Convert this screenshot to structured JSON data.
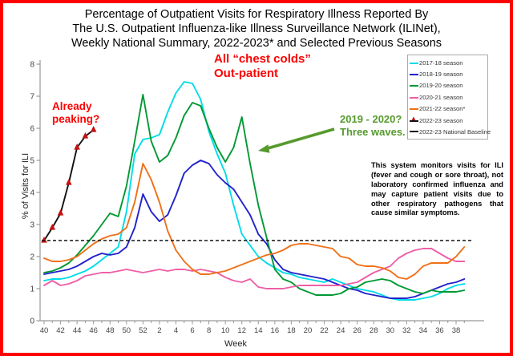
{
  "title": {
    "line1": "Percentage of Outpatient Visits for Respiratory Illness Reported By",
    "line2": "The U.S. Outpatient Influenza-like Illness Surveillance Network (ILINet),",
    "line3": "Weekly National Summary, 2022-2023* and Selected Previous Seasons"
  },
  "annotations": {
    "chest_colds_line1": "All “chest colds”",
    "chest_colds_line2": "Out-patient",
    "already_peaking_line1": "Already",
    "already_peaking_line2": "peaking?",
    "three_waves_line1": "2019 - 2020?",
    "three_waves_line2": "Three waves.",
    "note_text": "This system monitors visits for ILI (fever and cough or sore throat), not laboratory confirmed influenza and may capture patient visits due to other respiratory pathogens that cause similar symptoms."
  },
  "colors": {
    "frame_border": "#fe0000",
    "red_annotation": "#fe0000",
    "green_annotation": "#569a2e",
    "axis": "#999999",
    "tick_text": "#444444"
  },
  "chart_data": {
    "type": "line",
    "title": "Percentage of Outpatient Visits for Respiratory Illness (ILINet), Weekly National Summary, 2022-2023* and Selected Previous Seasons",
    "xlabel": "Week",
    "ylabel": "% of Visits for ILI",
    "ylim": [
      0,
      8
    ],
    "y_ticks": [
      0,
      1,
      2,
      3,
      4,
      5,
      6,
      7,
      8
    ],
    "grid": false,
    "legend_position": "top-right",
    "weeks": [
      40,
      41,
      42,
      43,
      44,
      45,
      46,
      47,
      48,
      49,
      50,
      51,
      52,
      1,
      2,
      3,
      4,
      5,
      6,
      7,
      8,
      9,
      10,
      11,
      12,
      13,
      14,
      15,
      16,
      17,
      18,
      19,
      20,
      21,
      22,
      23,
      24,
      25,
      26,
      27,
      28,
      29,
      30,
      31,
      32,
      33,
      34,
      35,
      36,
      37,
      38,
      39
    ],
    "series": [
      {
        "name": "2017-18 season",
        "color": "#00dce8",
        "values": [
          1.25,
          1.3,
          1.3,
          1.35,
          1.45,
          1.55,
          1.7,
          1.9,
          2.1,
          2.3,
          3.4,
          5.2,
          5.65,
          5.7,
          5.8,
          6.5,
          7.1,
          7.45,
          7.4,
          6.9,
          5.9,
          5.2,
          4.6,
          3.6,
          2.7,
          2.35,
          2.0,
          1.8,
          1.65,
          1.5,
          1.45,
          1.35,
          1.3,
          1.25,
          1.2,
          1.3,
          1.2,
          1.1,
          1.0,
          0.95,
          0.9,
          0.8,
          0.7,
          0.65,
          0.65,
          0.65,
          0.7,
          0.75,
          0.85,
          1.0,
          1.1,
          1.15
        ]
      },
      {
        "name": "2018-19 season",
        "color": "#2222cc",
        "values": [
          1.45,
          1.5,
          1.55,
          1.6,
          1.7,
          1.85,
          2.0,
          2.1,
          2.05,
          2.1,
          2.3,
          2.9,
          3.95,
          3.4,
          3.1,
          3.3,
          3.9,
          4.6,
          4.85,
          5.0,
          4.9,
          4.55,
          4.3,
          4.1,
          3.7,
          3.3,
          2.7,
          2.4,
          1.9,
          1.6,
          1.5,
          1.45,
          1.4,
          1.35,
          1.3,
          1.2,
          1.1,
          1.0,
          0.95,
          0.85,
          0.8,
          0.75,
          0.7,
          0.7,
          0.7,
          0.75,
          0.85,
          0.95,
          1.05,
          1.15,
          1.2,
          1.3
        ]
      },
      {
        "name": "2019-20 season",
        "color": "#009933",
        "values": [
          1.5,
          1.55,
          1.65,
          1.8,
          2.05,
          2.35,
          2.65,
          3.0,
          3.35,
          3.25,
          4.2,
          5.6,
          7.05,
          5.6,
          4.95,
          5.15,
          5.7,
          6.4,
          6.8,
          6.7,
          6.0,
          5.4,
          4.95,
          5.4,
          6.35,
          4.9,
          3.6,
          2.6,
          1.6,
          1.3,
          1.2,
          1.0,
          0.9,
          0.8,
          0.8,
          0.8,
          0.85,
          1.0,
          1.05,
          1.2,
          1.25,
          1.3,
          1.25,
          1.1,
          1.0,
          0.9,
          0.85,
          0.95,
          0.9,
          0.9,
          0.9,
          0.95
        ]
      },
      {
        "name": "2020-21 season",
        "color": "#ee5fa7",
        "values": [
          1.1,
          1.25,
          1.1,
          1.15,
          1.25,
          1.4,
          1.45,
          1.5,
          1.5,
          1.55,
          1.6,
          1.55,
          1.5,
          1.55,
          1.6,
          1.55,
          1.6,
          1.6,
          1.55,
          1.6,
          1.55,
          1.5,
          1.35,
          1.25,
          1.2,
          1.3,
          1.05,
          1.0,
          1.0,
          1.0,
          1.05,
          1.1,
          1.1,
          1.1,
          1.1,
          1.1,
          1.1,
          1.15,
          1.2,
          1.35,
          1.5,
          1.6,
          1.7,
          1.95,
          2.1,
          2.2,
          2.25,
          2.25,
          2.1,
          1.95,
          1.85,
          1.85
        ]
      },
      {
        "name": "2021-22 season*",
        "color": "#f07017",
        "values": [
          1.95,
          1.85,
          1.85,
          1.9,
          2.0,
          2.2,
          2.4,
          2.55,
          2.65,
          2.7,
          2.9,
          3.7,
          4.9,
          4.4,
          3.7,
          2.8,
          2.2,
          1.85,
          1.6,
          1.45,
          1.45,
          1.5,
          1.55,
          1.65,
          1.75,
          1.85,
          1.95,
          2.05,
          2.1,
          2.2,
          2.35,
          2.4,
          2.4,
          2.35,
          2.3,
          2.25,
          2.0,
          1.95,
          1.75,
          1.7,
          1.7,
          1.65,
          1.55,
          1.35,
          1.3,
          1.45,
          1.7,
          1.8,
          1.8,
          1.8,
          2.0,
          2.3
        ]
      },
      {
        "name": "2022-23 season",
        "color": "#111111",
        "marker": "triangle",
        "marker_color": "#c41111",
        "values": [
          2.5,
          2.9,
          3.35,
          4.3,
          5.4,
          5.75,
          5.95
        ]
      },
      {
        "name": "2022-23 National Baseline",
        "color": "#111111",
        "dash": true,
        "baseline_value": 2.5
      }
    ]
  }
}
